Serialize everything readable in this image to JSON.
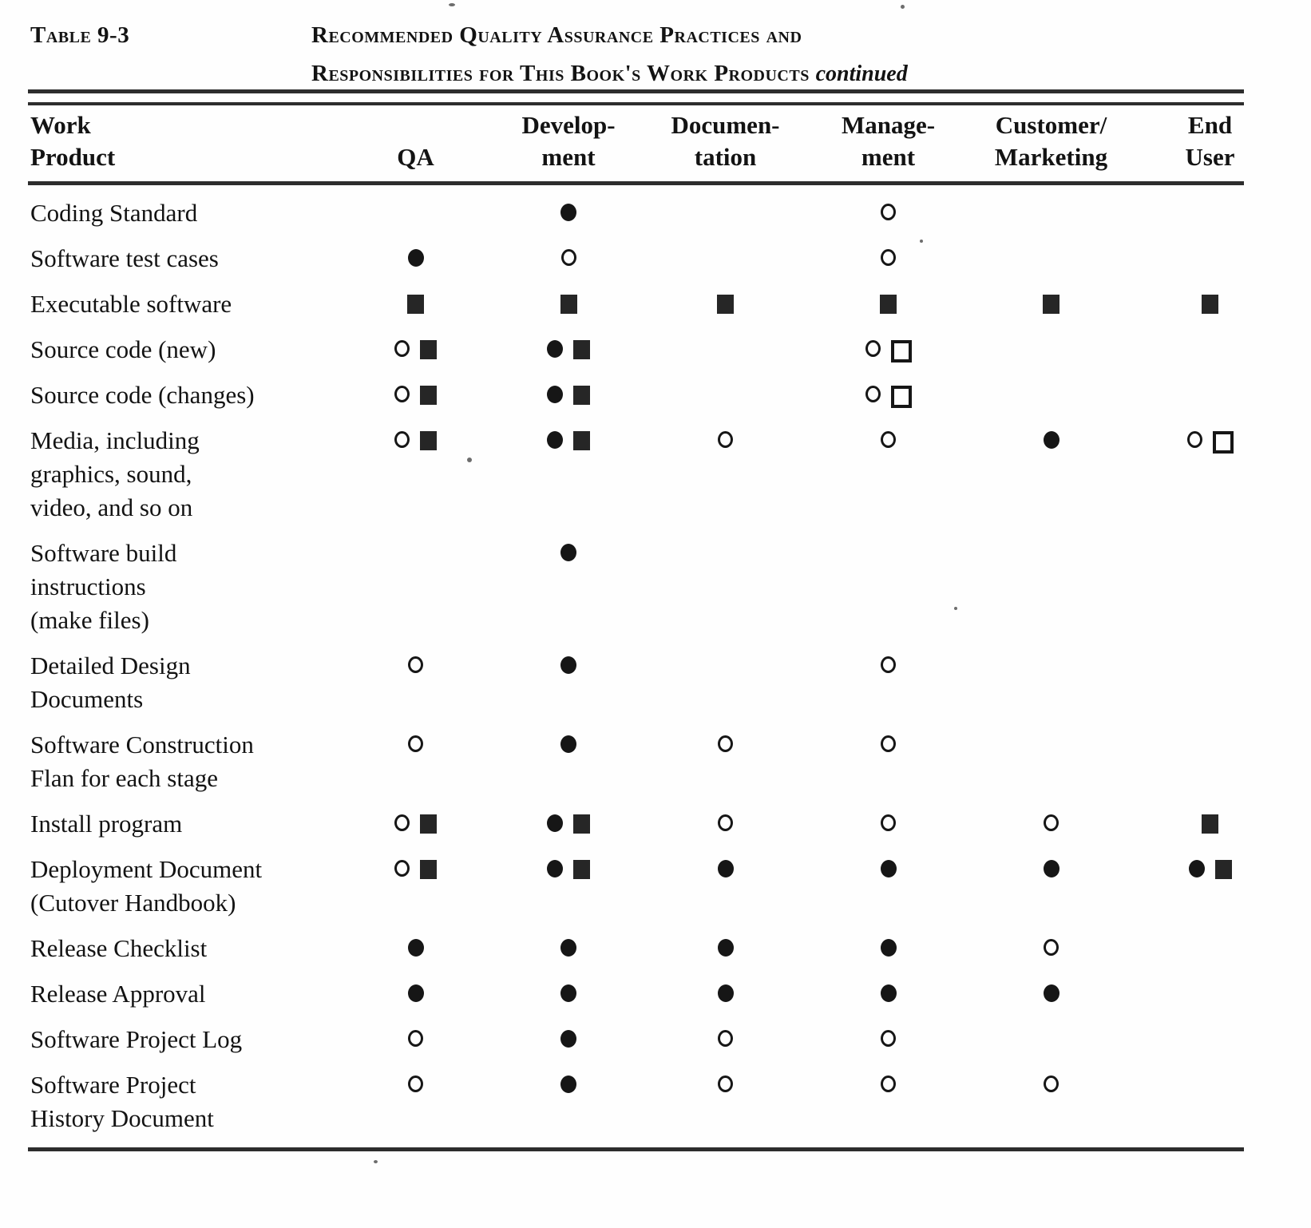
{
  "page": {
    "table_label": "Table 9-3",
    "title_line1": "Recommended Quality Assurance Practices and",
    "title_line2": "Responsibilities for This Book's Work Products",
    "title_continued": "continued"
  },
  "symbols": {
    "filled-circle": "●",
    "open-circle": "○",
    "filled-square": "■",
    "open-square": "□"
  },
  "colors": {
    "ink": "#161616",
    "paper": "#fefefe"
  },
  "table": {
    "header": {
      "work_product_lines": [
        "Work",
        "Product"
      ],
      "columns": [
        {
          "id": "qa",
          "lines": [
            "QA"
          ]
        },
        {
          "id": "development",
          "lines": [
            "Develop-",
            "ment"
          ]
        },
        {
          "id": "documentation",
          "lines": [
            "Documen-",
            "tation"
          ]
        },
        {
          "id": "management",
          "lines": [
            "Manage-",
            "ment"
          ]
        },
        {
          "id": "customer_marketing",
          "lines": [
            "Customer/",
            "Marketing"
          ]
        },
        {
          "id": "end_user",
          "lines": [
            "End",
            "User"
          ]
        }
      ]
    },
    "rows": [
      {
        "label_lines": [
          "Coding Standard"
        ],
        "cells": {
          "qa": [],
          "development": [
            "filled-circle"
          ],
          "documentation": [],
          "management": [
            "open-circle"
          ],
          "customer_marketing": [],
          "end_user": []
        }
      },
      {
        "label_lines": [
          "Software test cases"
        ],
        "cells": {
          "qa": [
            "filled-circle"
          ],
          "development": [
            "open-circle"
          ],
          "documentation": [],
          "management": [
            "open-circle"
          ],
          "customer_marketing": [],
          "end_user": []
        }
      },
      {
        "label_lines": [
          "Executable software"
        ],
        "cells": {
          "qa": [
            "filled-square"
          ],
          "development": [
            "filled-square"
          ],
          "documentation": [
            "filled-square"
          ],
          "management": [
            "filled-square"
          ],
          "customer_marketing": [
            "filled-square"
          ],
          "end_user": [
            "filled-square"
          ]
        }
      },
      {
        "label_lines": [
          "Source code (new)"
        ],
        "cells": {
          "qa": [
            "open-circle",
            "filled-square"
          ],
          "development": [
            "filled-circle",
            "filled-square"
          ],
          "documentation": [],
          "management": [
            "open-circle",
            "open-square"
          ],
          "customer_marketing": [],
          "end_user": []
        }
      },
      {
        "label_lines": [
          "Source code (changes)"
        ],
        "cells": {
          "qa": [
            "open-circle",
            "filled-square"
          ],
          "development": [
            "filled-circle",
            "filled-square"
          ],
          "documentation": [],
          "management": [
            "open-circle",
            "open-square"
          ],
          "customer_marketing": [],
          "end_user": []
        }
      },
      {
        "label_lines": [
          "Media, including",
          "graphics, sound,",
          "video, and so on"
        ],
        "cells": {
          "qa": [
            "open-circle",
            "filled-square"
          ],
          "development": [
            "filled-circle",
            "filled-square"
          ],
          "documentation": [
            "open-circle"
          ],
          "management": [
            "open-circle"
          ],
          "customer_marketing": [
            "filled-circle"
          ],
          "end_user": [
            "open-circle",
            "open-square"
          ]
        }
      },
      {
        "label_lines": [
          "Software build",
          "instructions",
          "(make files)"
        ],
        "cells": {
          "qa": [],
          "development": [
            "filled-circle"
          ],
          "documentation": [],
          "management": [],
          "customer_marketing": [],
          "end_user": []
        }
      },
      {
        "label_lines": [
          "Detailed Design",
          "Documents"
        ],
        "cells": {
          "qa": [
            "open-circle"
          ],
          "development": [
            "filled-circle"
          ],
          "documentation": [],
          "management": [
            "open-circle"
          ],
          "customer_marketing": [],
          "end_user": []
        }
      },
      {
        "label_lines": [
          "Software Construction",
          "Flan for each stage"
        ],
        "cells": {
          "qa": [
            "open-circle"
          ],
          "development": [
            "filled-circle"
          ],
          "documentation": [
            "open-circle"
          ],
          "management": [
            "open-circle"
          ],
          "customer_marketing": [],
          "end_user": []
        }
      },
      {
        "label_lines": [
          "Install program"
        ],
        "cells": {
          "qa": [
            "open-circle",
            "filled-square"
          ],
          "development": [
            "filled-circle",
            "filled-square"
          ],
          "documentation": [
            "open-circle"
          ],
          "management": [
            "open-circle"
          ],
          "customer_marketing": [
            "open-circle"
          ],
          "end_user": [
            "filled-square"
          ]
        }
      },
      {
        "label_lines": [
          "Deployment Document",
          "(Cutover Handbook)"
        ],
        "cells": {
          "qa": [
            "open-circle",
            "filled-square"
          ],
          "development": [
            "filled-circle",
            "filled-square"
          ],
          "documentation": [
            "filled-circle"
          ],
          "management": [
            "filled-circle"
          ],
          "customer_marketing": [
            "filled-circle"
          ],
          "end_user": [
            "filled-circle",
            "filled-square"
          ]
        }
      },
      {
        "label_lines": [
          "Release Checklist"
        ],
        "cells": {
          "qa": [
            "filled-circle"
          ],
          "development": [
            "filled-circle"
          ],
          "documentation": [
            "filled-circle"
          ],
          "management": [
            "filled-circle"
          ],
          "customer_marketing": [
            "open-circle"
          ],
          "end_user": []
        }
      },
      {
        "label_lines": [
          "Release Approval"
        ],
        "cells": {
          "qa": [
            "filled-circle"
          ],
          "development": [
            "filled-circle"
          ],
          "documentation": [
            "filled-circle"
          ],
          "management": [
            "filled-circle"
          ],
          "customer_marketing": [
            "filled-circle"
          ],
          "end_user": []
        }
      },
      {
        "label_lines": [
          "Software Project Log"
        ],
        "cells": {
          "qa": [
            "open-circle"
          ],
          "development": [
            "filled-circle"
          ],
          "documentation": [
            "open-circle"
          ],
          "management": [
            "open-circle"
          ],
          "customer_marketing": [],
          "end_user": []
        }
      },
      {
        "label_lines": [
          "Software Project",
          "History Document"
        ],
        "cells": {
          "qa": [
            "open-circle"
          ],
          "development": [
            "filled-circle"
          ],
          "documentation": [
            "open-circle"
          ],
          "management": [
            "open-circle"
          ],
          "customer_marketing": [
            "open-circle"
          ],
          "end_user": []
        }
      }
    ]
  }
}
